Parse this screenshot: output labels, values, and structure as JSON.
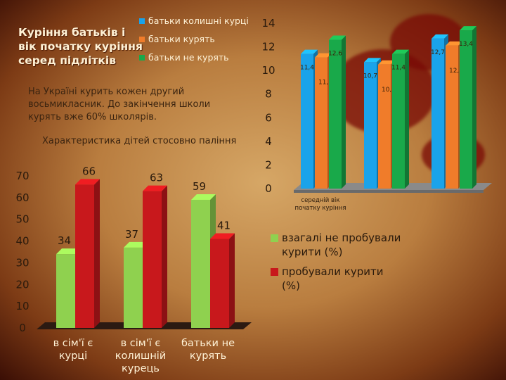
{
  "slide": {
    "title": "Куріння батьків і вік початку куріння серед підлітків",
    "text": "На Україні курить кожен другий восьмикласник. До закінчення школи курять вже 60% школярів."
  },
  "chart_data": [
    {
      "type": "bar",
      "title": "",
      "categories": [
        "середній вік початку куріння",
        "",
        ""
      ],
      "series": [
        {
          "name": "батьки колишні курці",
          "color": "#1aa3ea",
          "values": [
            11.4,
            10.7,
            12.7
          ],
          "labels": [
            "11,4",
            "10,7",
            "12,7"
          ]
        },
        {
          "name": "батьки курять",
          "color": "#f07c2a",
          "values": [
            11.1,
            10.5,
            12.1
          ],
          "labels": [
            "11,1",
            "10,5",
            "12,1"
          ]
        },
        {
          "name": "батьки не курять",
          "color": "#19a94a",
          "values": [
            12.6,
            11.4,
            13.4
          ],
          "labels": [
            "12,6",
            "11,4",
            "13,4"
          ]
        }
      ],
      "y_ticks": [
        "0",
        "2",
        "4",
        "6",
        "8",
        "10",
        "12",
        "14"
      ],
      "ylim": [
        0,
        14
      ],
      "legend": "top-left"
    },
    {
      "type": "bar",
      "title": "Характеристика дітей стосовно паління",
      "categories": [
        "в сім'ї є курці",
        "в сім'ї є колишній курець",
        "батьки не курять"
      ],
      "series": [
        {
          "name": "взагалі не пробували курити (%)",
          "color": "#8fd14f",
          "values": [
            34,
            37,
            59
          ],
          "labels": [
            "34",
            "37",
            "59"
          ]
        },
        {
          "name": "пробували курити (%)",
          "color": "#c8181c",
          "values": [
            66,
            63,
            41
          ],
          "labels": [
            "66",
            "63",
            "41"
          ]
        }
      ],
      "y_ticks": [
        "0",
        "10",
        "20",
        "30",
        "40",
        "50",
        "60",
        "70"
      ],
      "ylim": [
        0,
        70
      ],
      "legend": "right"
    }
  ]
}
